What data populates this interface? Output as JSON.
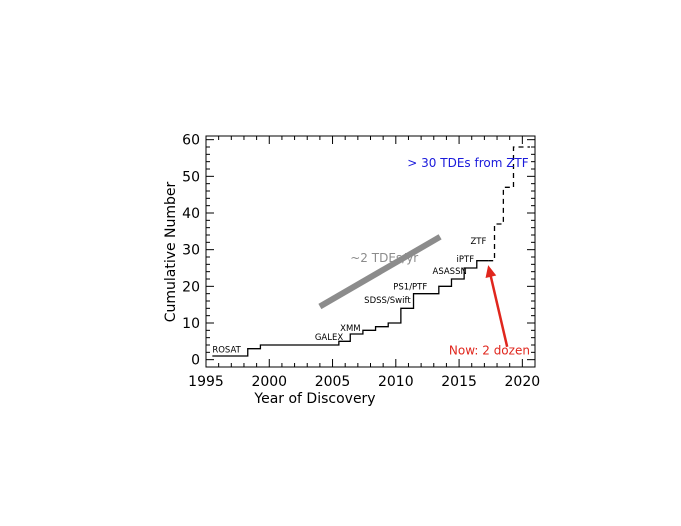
{
  "chart_data": {
    "type": "line",
    "xlabel": "Year of Discovery",
    "ylabel": "Cumulative Number",
    "xlim": [
      1995,
      2021
    ],
    "ylim": [
      -2,
      61
    ],
    "xticks": [
      "1995",
      "2000",
      "2005",
      "2010",
      "2015",
      "2020"
    ],
    "yticks": [
      "0",
      "10",
      "20",
      "30",
      "40",
      "50",
      "60"
    ],
    "grid": false,
    "series": [
      {
        "style": "solid",
        "color": "#000000",
        "step": true,
        "x": [
          1995.5,
          1998.3,
          1999.3,
          2005.5,
          2006.4,
          2007.4,
          2008.4,
          2009.4,
          2010.4,
          2011.4,
          2013.4,
          2014.4,
          2015.4,
          2016.4,
          2017.3
        ],
        "y": [
          1,
          3,
          4,
          5,
          7,
          8,
          9,
          10,
          14,
          18,
          20,
          22,
          25,
          27,
          27
        ]
      },
      {
        "style": "dashed",
        "color": "#000000",
        "step": true,
        "x": [
          2017.3,
          2017.8,
          2018.5,
          2019.3,
          2020.0,
          2020.6
        ],
        "y": [
          27,
          37,
          47,
          58,
          58,
          58
        ]
      }
    ],
    "survey_labels": [
      {
        "text": "ROSAT",
        "x": 1995.5,
        "y": 2
      },
      {
        "text": "GALEX",
        "x": 2003.6,
        "y": 5.3
      },
      {
        "text": "XMM",
        "x": 2005.6,
        "y": 7.8
      },
      {
        "text": "SDSS/Swift",
        "x": 2007.5,
        "y": 15.5
      },
      {
        "text": "PS1/PTF",
        "x": 2009.8,
        "y": 19.2
      },
      {
        "text": "ASASSN",
        "x": 2012.9,
        "y": 23.4
      },
      {
        "text": "iPTF",
        "x": 2014.8,
        "y": 26.6
      },
      {
        "text": "ZTF",
        "x": 2015.9,
        "y": 31.6
      }
    ],
    "annotations": {
      "ztf_note": {
        "text": "> 30 TDEs from ZTF",
        "color": "#1a1adb",
        "x": 2020.5,
        "y": 52.6
      },
      "rate_line": {
        "text": "~2 TDEs/yr",
        "color": "#8c8c8c",
        "x0": 2004.0,
        "y0": 14.5,
        "x1": 2013.5,
        "y1": 33.5,
        "label_x": 2006.4,
        "label_y": 26.6
      },
      "now_arrow": {
        "text": "Now: 2 dozen",
        "color": "#e0261d",
        "x0": 2018.8,
        "y0": 3.5,
        "x1": 2017.3,
        "y1": 25.8,
        "label_x": 2020.6,
        "label_y": 1.4
      }
    }
  }
}
